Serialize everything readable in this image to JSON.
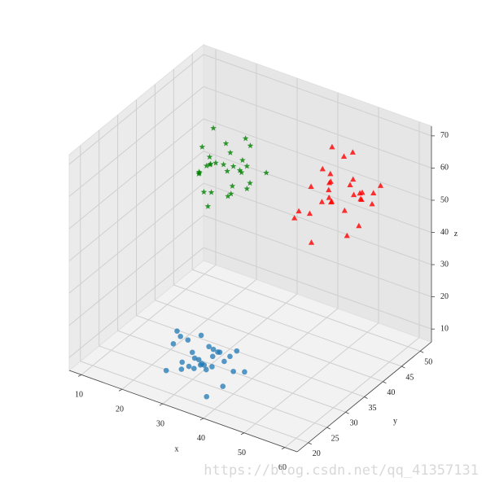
{
  "chart_data": {
    "type": "scatter3d",
    "xlabel": "x",
    "ylabel": "y",
    "zlabel": "z",
    "xlim": [
      7,
      63
    ],
    "ylim": [
      17,
      53
    ],
    "zlim": [
      6,
      73
    ],
    "xticks": [
      10,
      20,
      30,
      40,
      50,
      60
    ],
    "yticks": [
      20,
      25,
      30,
      35,
      40,
      45,
      50
    ],
    "zticks": [
      10,
      20,
      30,
      40,
      50,
      60,
      70
    ],
    "grid": true,
    "series": [
      {
        "color": "#1f77b4",
        "marker": "circle",
        "x": [
          30,
          34,
          38,
          27,
          41,
          35,
          29,
          33,
          37,
          31,
          40,
          28,
          36,
          32,
          39,
          34,
          30,
          38,
          42,
          27,
          33,
          35,
          31,
          37,
          29,
          36,
          40,
          32,
          34,
          28
        ],
        "y": [
          22,
          25,
          20,
          27,
          23,
          28,
          19,
          24,
          21,
          26,
          25,
          22,
          19,
          28,
          27,
          21,
          24,
          23,
          20,
          25,
          29,
          22,
          27,
          19,
          26,
          24,
          28,
          20,
          26,
          23
        ],
        "z": [
          12,
          18,
          9,
          15,
          20,
          11,
          14,
          22,
          16,
          10,
          13,
          19,
          21,
          8,
          17,
          15,
          11,
          20,
          14,
          18,
          12,
          16,
          9,
          21,
          13,
          19,
          10,
          17,
          14,
          22
        ]
      },
      {
        "color": "#ff0000",
        "marker": "triangle",
        "x": [
          48,
          52,
          56,
          45,
          50,
          54,
          47,
          58,
          51,
          44,
          55,
          49,
          53,
          57,
          46,
          50,
          52,
          48,
          55,
          45,
          56,
          51,
          47,
          53,
          49,
          54,
          46,
          57,
          50,
          52
        ],
        "y": [
          40,
          44,
          38,
          46,
          35,
          42,
          47,
          39,
          45,
          37,
          43,
          36,
          48,
          41,
          44,
          38,
          46,
          42,
          35,
          40,
          47,
          39,
          43,
          37,
          45,
          41,
          36,
          44,
          48,
          38
        ],
        "z": [
          55,
          60,
          50,
          65,
          48,
          58,
          62,
          53,
          67,
          51,
          56,
          64,
          49,
          61,
          54,
          68,
          52,
          59,
          63,
          50,
          57,
          66,
          53,
          60,
          48,
          62,
          55,
          58,
          51,
          65
        ]
      },
      {
        "color": "#008000",
        "marker": "star",
        "x": [
          16,
          20,
          24,
          14,
          22,
          26,
          18,
          15,
          21,
          25,
          17,
          23,
          19,
          27,
          14,
          20,
          24,
          16,
          22,
          18,
          26,
          15,
          21,
          23,
          17,
          25,
          19,
          14,
          22,
          20
        ],
        "y": [
          42,
          46,
          41,
          48,
          44,
          40,
          47,
          43,
          49,
          45,
          41,
          46,
          42,
          48,
          45,
          40,
          47,
          44,
          43,
          49,
          42,
          46,
          41,
          48,
          44,
          45,
          40,
          47,
          42,
          49
        ],
        "z": [
          48,
          52,
          45,
          55,
          42,
          50,
          53,
          46,
          54,
          44,
          49,
          51,
          43,
          47,
          52,
          41,
          55,
          48,
          50,
          44,
          53,
          46,
          54,
          42,
          49,
          51,
          45,
          47,
          53,
          43
        ]
      }
    ]
  },
  "watermark": "https://blog.csdn.net/qq_41357131"
}
